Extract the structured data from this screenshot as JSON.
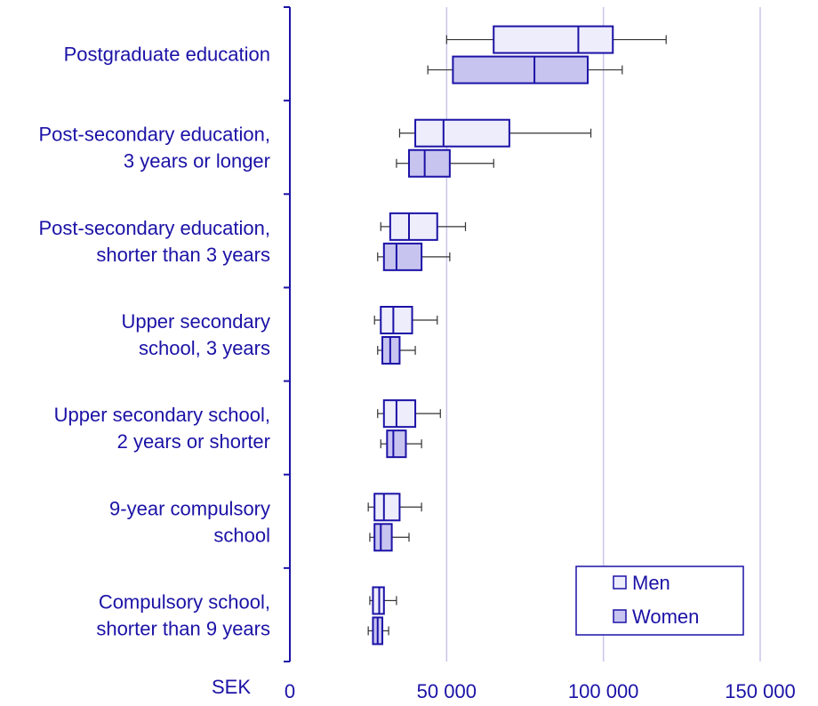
{
  "chart_data": {
    "type": "boxplot",
    "orientation": "horizontal",
    "unit_label": "SEK",
    "xlim": [
      0,
      150000
    ],
    "x_ticks": [
      0,
      50000,
      100000,
      150000
    ],
    "x_tick_labels": [
      "0",
      "50 000",
      "100 000",
      "150 000"
    ],
    "vertical_grid": true,
    "legend_position": "bottom-right",
    "colors": {
      "axis": "#1b12a6",
      "grid": "#c9c6ec",
      "men_fill": "#eeedfc",
      "women_fill": "#c8c4f0",
      "box_stroke": "#1b12a6",
      "whisker": "#333333"
    },
    "categories": [
      {
        "label_lines": [
          "Postgraduate education"
        ]
      },
      {
        "label_lines": [
          "Post-secondary education,",
          "3 years or longer"
        ]
      },
      {
        "label_lines": [
          "Post-secondary education,",
          "shorter than 3 years"
        ]
      },
      {
        "label_lines": [
          "Upper secondary",
          "school, 3 years"
        ]
      },
      {
        "label_lines": [
          "Upper secondary school,",
          "2 years or shorter"
        ]
      },
      {
        "label_lines": [
          "9-year compulsory",
          "school"
        ]
      },
      {
        "label_lines": [
          "Compulsory school,",
          "shorter than 9 years"
        ]
      }
    ],
    "series": [
      {
        "name": "Men",
        "values": [
          {
            "min": 50000,
            "q1": 65000,
            "median": 92000,
            "q3": 103000,
            "max": 120000
          },
          {
            "min": 35000,
            "q1": 40000,
            "median": 49000,
            "q3": 70000,
            "max": 96000
          },
          {
            "min": 29000,
            "q1": 32000,
            "median": 38000,
            "q3": 47000,
            "max": 56000
          },
          {
            "min": 27000,
            "q1": 29000,
            "median": 33000,
            "q3": 39000,
            "max": 47000
          },
          {
            "min": 28000,
            "q1": 30000,
            "median": 34000,
            "q3": 40000,
            "max": 48000
          },
          {
            "min": 25000,
            "q1": 27000,
            "median": 30000,
            "q3": 35000,
            "max": 42000
          },
          {
            "min": 25500,
            "q1": 26500,
            "median": 28500,
            "q3": 30000,
            "max": 34000
          }
        ]
      },
      {
        "name": "Women",
        "values": [
          {
            "min": 44000,
            "q1": 52000,
            "median": 78000,
            "q3": 95000,
            "max": 106000
          },
          {
            "min": 34000,
            "q1": 38000,
            "median": 43000,
            "q3": 51000,
            "max": 65000
          },
          {
            "min": 28000,
            "q1": 30000,
            "median": 34000,
            "q3": 42000,
            "max": 51000
          },
          {
            "min": 28000,
            "q1": 29500,
            "median": 32000,
            "q3": 35000,
            "max": 40000
          },
          {
            "min": 29000,
            "q1": 31000,
            "median": 33000,
            "q3": 37000,
            "max": 42000
          },
          {
            "min": 25500,
            "q1": 27000,
            "median": 29000,
            "q3": 32500,
            "max": 38000
          },
          {
            "min": 25000,
            "q1": 26500,
            "median": 28000,
            "q3": 29500,
            "max": 31500
          }
        ]
      }
    ]
  }
}
